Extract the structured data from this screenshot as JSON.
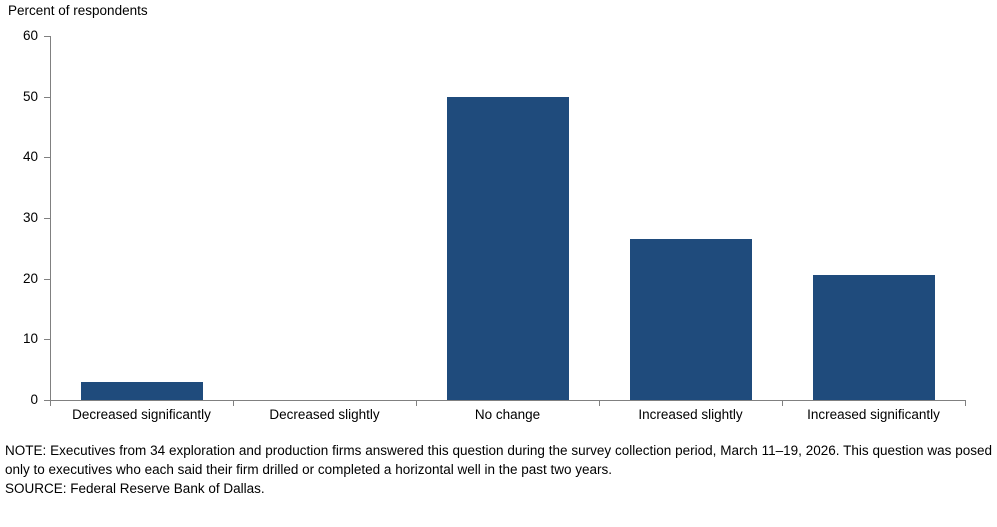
{
  "chart_data": {
    "type": "bar",
    "title": "Percent of respondents",
    "categories": [
      "Decreased significantly",
      "Decreased slightly",
      "No change",
      "Increased slightly",
      "Increased significantly"
    ],
    "values": [
      2.9,
      0,
      50,
      26.5,
      20.6
    ],
    "ylabel": "Percent of respondents",
    "xlabel": "",
    "ylim": [
      0,
      60
    ],
    "ytick_interval": 10,
    "grid": false,
    "legend": false,
    "bar_color": "#1F4B7C",
    "axis_color": "#808080",
    "text_color": "#000000"
  },
  "notes": {
    "note": "NOTE: Executives from 34 exploration and production firms answered this question during the survey collection period, March 11–19, 2026. This question was posed only to executives who each said their firm drilled or completed a horizontal well in the past two years.",
    "source": "SOURCE: Federal Reserve Bank of Dallas."
  }
}
